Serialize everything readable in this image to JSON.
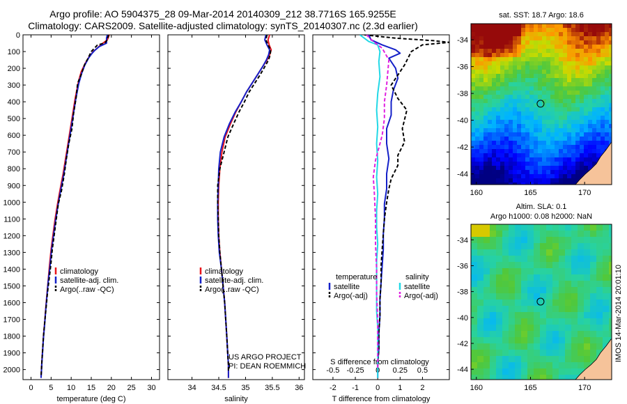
{
  "header": {
    "line1": "Argo profile: AO 5904375_28 09-Mar-2014 20140309_212 38.7716S 165.9255E",
    "line2": "Climatology: CARS2009. Satellite-adjusted climatology: synTS_20140307.nc (2.3d earlier)"
  },
  "colors": {
    "climatology": "#e8141a",
    "satellite": "#1420c8",
    "argo": "#000000",
    "salinity_satellite": "#22d8e6",
    "salinity_argo": "#e020e0"
  },
  "credits": {
    "line1": "US ARGO PROJECT",
    "line2": "PI: DEAN ROEMMICH"
  },
  "stamp": "IMOS 14-Mar-2014 20:01:10",
  "chart_data": [
    {
      "type": "line",
      "xlabel": "temperature (deg C)",
      "ylabel": "",
      "xlim": [
        -2,
        32
      ],
      "ylim": [
        2060,
        0
      ],
      "xticks": [
        0,
        5,
        10,
        15,
        20,
        25,
        30
      ],
      "xtick_labels": [
        "0",
        "5",
        "10",
        "15",
        "20",
        "25",
        "30"
      ],
      "yticks": [
        0,
        100,
        200,
        300,
        400,
        500,
        600,
        700,
        800,
        900,
        1000,
        1100,
        1200,
        1300,
        1400,
        1500,
        1600,
        1700,
        1800,
        1900,
        2000
      ],
      "ytick_labels": [
        "0",
        "100",
        "200",
        "300",
        "400",
        "500",
        "600",
        "700",
        "800",
        "900",
        "1000",
        "1100",
        "1200",
        "1300",
        "1400",
        "1500",
        "1600",
        "1700",
        "1800",
        "1900",
        "2000"
      ],
      "grid": false,
      "legend": {
        "position": "bottom-right",
        "items": [
          "climatology",
          "satellite-adj. clim.",
          "Argo(..raw -QC)"
        ]
      },
      "series": [
        {
          "name": "climatology",
          "style": "solid",
          "color_key": "climatology",
          "x": [
            19.5,
            19.0,
            18.2,
            17.3,
            16.5,
            15.5,
            14.5,
            13.5,
            12.5,
            11.8,
            11.0,
            10.4,
            9.8,
            9.2,
            8.6,
            8.0,
            7.2,
            6.6,
            6.0,
            5.5,
            5.0,
            4.6,
            4.3,
            4.0,
            3.7,
            3.4,
            3.1,
            2.9,
            2.7,
            2.6,
            2.5
          ],
          "y": [
            0,
            30,
            45,
            60,
            80,
            100,
            130,
            170,
            220,
            280,
            380,
            470,
            560,
            650,
            740,
            830,
            930,
            1010,
            1100,
            1190,
            1280,
            1380,
            1460,
            1540,
            1620,
            1720,
            1800,
            1880,
            1950,
            2000,
            2050
          ]
        },
        {
          "name": "satellite-adj. clim.",
          "style": "solid",
          "color_key": "satellite",
          "x": [
            19.0,
            18.8,
            18.8,
            17.0,
            16.0,
            15.2,
            14.3,
            13.4,
            12.6,
            11.9,
            11.1,
            10.5,
            9.9,
            9.3,
            8.7,
            8.1,
            7.3,
            6.7,
            6.1,
            5.6,
            5.1,
            4.7,
            4.3,
            4.0,
            3.7,
            3.4,
            3.1,
            2.9,
            2.7,
            2.6,
            2.5
          ],
          "y": [
            0,
            20,
            50,
            70,
            90,
            110,
            140,
            180,
            230,
            290,
            390,
            480,
            570,
            660,
            750,
            840,
            940,
            1020,
            1110,
            1200,
            1290,
            1390,
            1470,
            1550,
            1630,
            1730,
            1810,
            1890,
            1960,
            2010,
            2050
          ]
        },
        {
          "name": "Argo(..raw -QC)",
          "style": "dashed",
          "color_key": "argo",
          "x": [
            19.3,
            19.0,
            18.4,
            16.5,
            15.8,
            15.0,
            14.2,
            13.3,
            12.6,
            11.6,
            11.2,
            10.6,
            10.2,
            9.4,
            8.8,
            8.3,
            7.6,
            6.8,
            6.3,
            5.8,
            5.3,
            4.9,
            4.5,
            4.1,
            3.8,
            3.4,
            3.1,
            2.9,
            2.7,
            2.6,
            2.5
          ],
          "y": [
            0,
            30,
            48,
            62,
            80,
            100,
            140,
            180,
            230,
            290,
            380,
            470,
            560,
            650,
            740,
            830,
            930,
            1010,
            1100,
            1190,
            1280,
            1380,
            1460,
            1540,
            1620,
            1720,
            1800,
            1880,
            1950,
            2000,
            2040
          ]
        }
      ]
    },
    {
      "type": "line",
      "xlabel": "salinity",
      "ylabel": "",
      "xlim": [
        33.55,
        36.1
      ],
      "ylim": [
        2060,
        0
      ],
      "xticks": [
        34,
        34.5,
        35,
        35.5,
        36
      ],
      "xtick_labels": [
        "34",
        "34.5",
        "35",
        "35.5",
        "36"
      ],
      "grid": false,
      "legend": {
        "position": "bottom-right",
        "items": [
          "climatology",
          "satellite-adj. clim.",
          "Argo(..raw -QC)"
        ]
      },
      "series": [
        {
          "name": "climatology",
          "style": "solid",
          "color_key": "climatology",
          "x": [
            35.45,
            35.42,
            35.44,
            35.48,
            35.45,
            35.4,
            35.32,
            35.22,
            35.12,
            35.02,
            34.92,
            34.82,
            34.72,
            34.62,
            34.56,
            34.52,
            34.5,
            34.49,
            34.49,
            34.5,
            34.52,
            34.55,
            34.58,
            34.61,
            34.63,
            34.65,
            34.66,
            34.67,
            34.68,
            34.68,
            34.68
          ],
          "y": [
            0,
            30,
            60,
            90,
            120,
            150,
            190,
            240,
            290,
            340,
            400,
            460,
            530,
            610,
            700,
            800,
            900,
            1000,
            1100,
            1200,
            1300,
            1400,
            1500,
            1600,
            1700,
            1800,
            1860,
            1920,
            1970,
            2010,
            2050
          ]
        },
        {
          "name": "satellite-adj. clim.",
          "style": "solid",
          "color_key": "satellite",
          "x": [
            35.38,
            35.36,
            35.4,
            35.45,
            35.43,
            35.39,
            35.32,
            35.22,
            35.12,
            35.02,
            34.92,
            34.81,
            34.7,
            34.6,
            34.53,
            34.5,
            34.49,
            34.48,
            34.48,
            34.49,
            34.51,
            34.55,
            34.58,
            34.61,
            34.63,
            34.65,
            34.66,
            34.67,
            34.68,
            34.68,
            34.68
          ],
          "y": [
            0,
            30,
            60,
            90,
            120,
            150,
            190,
            240,
            290,
            340,
            400,
            460,
            530,
            610,
            700,
            800,
            900,
            1000,
            1100,
            1200,
            1300,
            1400,
            1500,
            1600,
            1700,
            1800,
            1860,
            1920,
            1970,
            2010,
            2050
          ]
        },
        {
          "name": "Argo(..raw -QC)",
          "style": "dashed",
          "color_key": "argo",
          "x": [
            35.4,
            35.38,
            35.42,
            35.47,
            35.46,
            35.43,
            35.36,
            35.27,
            35.17,
            35.07,
            34.98,
            34.88,
            34.78,
            34.67,
            34.6,
            34.52,
            34.48,
            34.48,
            34.49,
            34.5,
            34.52,
            34.55,
            34.58,
            34.61,
            34.63,
            34.65,
            34.66,
            34.67,
            34.68,
            34.68
          ],
          "y": [
            0,
            30,
            60,
            90,
            120,
            150,
            190,
            240,
            290,
            340,
            400,
            460,
            530,
            610,
            700,
            800,
            900,
            1000,
            1100,
            1200,
            1300,
            1400,
            1500,
            1600,
            1700,
            1800,
            1860,
            1920,
            1970,
            2010
          ]
        }
      ]
    },
    {
      "type": "line",
      "xlabel": "T difference from climatology",
      "xlabel_top": "S difference from climatology",
      "ylabel": "",
      "xlim": [
        -2.9,
        3.2
      ],
      "ylim": [
        2060,
        0
      ],
      "xticks": [
        -2,
        -1,
        0,
        1,
        2
      ],
      "xtick_labels": [
        "-2",
        "-1",
        "0",
        "1",
        "2"
      ],
      "sticks": [
        -2,
        -1,
        0,
        1,
        2
      ],
      "stick_labels": [
        "-0.5",
        "-0.25",
        "0",
        "0.25",
        "0.5"
      ],
      "grid": false,
      "legend": {
        "position": "bottom",
        "temperature_header": "temperature",
        "salinity_header": "salinity",
        "items": [
          "satellite",
          "Argo(-adj)",
          "satellite",
          "Argo(-adj)"
        ]
      },
      "series": [
        {
          "name": "satellite",
          "group": "temperature",
          "style": "solid",
          "color_key": "satellite",
          "x": [
            -0.4,
            -0.3,
            0.2,
            0.8,
            1.0,
            0.5,
            0.8,
            0.9,
            0.7,
            0.6,
            0.6,
            0.4,
            0.4,
            0.5,
            0.4,
            0.4,
            0.3,
            0.3,
            0.25,
            0.25,
            0.2,
            0.15,
            0.1,
            0.1,
            0.05,
            0.05,
            0.0,
            0.0,
            0.0
          ],
          "y": [
            0,
            30,
            60,
            90,
            110,
            140,
            200,
            260,
            330,
            400,
            480,
            560,
            650,
            740,
            830,
            920,
            1010,
            1100,
            1190,
            1280,
            1380,
            1480,
            1580,
            1680,
            1780,
            1880,
            1960,
            2020,
            2050
          ]
        },
        {
          "name": "Argo(-adj)",
          "group": "temperature",
          "style": "dashed",
          "color_key": "argo",
          "x": [
            -0.6,
            0.8,
            2.5,
            3.2,
            2.0,
            1.5,
            1.2,
            0.6,
            0.9,
            1.3,
            1.1,
            1.2,
            0.9,
            0.9,
            0.6,
            0.5,
            0.4,
            0.3,
            0.25,
            0.2,
            0.15,
            0.15,
            0.1,
            0.1,
            0.05,
            0.05,
            0.0,
            0.0
          ],
          "y": [
            0,
            20,
            35,
            45,
            60,
            100,
            180,
            300,
            380,
            450,
            560,
            640,
            720,
            780,
            860,
            920,
            1000,
            1100,
            1190,
            1280,
            1380,
            1480,
            1580,
            1680,
            1780,
            1880,
            1960,
            2020
          ]
        },
        {
          "name": "satellite",
          "group": "salinity",
          "style": "solid",
          "color_key": "salinity_satellite",
          "x": [
            -0.8,
            -0.4,
            0.0,
            0.1,
            0.05,
            0.1,
            0.0,
            -0.05,
            0.0,
            -0.05,
            0.0,
            -0.05,
            0.0,
            -0.05,
            -0.05,
            0.0,
            -0.05,
            -0.05,
            -0.05,
            -0.05,
            0.0,
            0.0,
            0.0,
            0.0
          ],
          "y": [
            0,
            40,
            60,
            100,
            160,
            250,
            350,
            450,
            550,
            650,
            750,
            850,
            950,
            1050,
            1150,
            1250,
            1350,
            1450,
            1550,
            1650,
            1750,
            1850,
            1950,
            2050
          ]
        },
        {
          "name": "Argo(-adj)",
          "group": "salinity",
          "style": "dashed",
          "color_key": "salinity_argo",
          "x": [
            -0.5,
            -0.2,
            0.2,
            0.5,
            0.4,
            0.3,
            0.3,
            0.2,
            -0.1,
            -0.2,
            -0.15,
            -0.1,
            -0.1,
            -0.05,
            -0.05,
            0.0,
            0.0,
            0.0
          ],
          "y": [
            0,
            40,
            80,
            150,
            300,
            400,
            500,
            600,
            750,
            850,
            950,
            1100,
            1250,
            1400,
            1550,
            1700,
            1850,
            2000
          ]
        }
      ]
    }
  ],
  "maps": [
    {
      "title": "sat. SST: 18.7 Argo: 18.6",
      "xlim": [
        159.5,
        172.5
      ],
      "ylim": [
        -44.8,
        -32.8
      ],
      "xticks": [
        160,
        165,
        170
      ],
      "xtick_labels": [
        "160",
        "165",
        "170"
      ],
      "yticks": [
        -34,
        -36,
        -38,
        -40,
        -42,
        -44
      ],
      "ytick_labels": [
        "-34",
        "-36",
        "-38",
        "-40",
        "-42",
        "-44"
      ],
      "marker": {
        "lon": 165.93,
        "lat": -38.77
      }
    },
    {
      "title": "Altim. SLA: 0.1",
      "title2": "Argo h1000: 0.08 h2000: NaN",
      "xlim": [
        159.5,
        172.5
      ],
      "ylim": [
        -44.8,
        -32.8
      ],
      "xticks": [
        160,
        165,
        170
      ],
      "xtick_labels": [
        "160",
        "165",
        "170"
      ],
      "yticks": [
        -34,
        -36,
        -38,
        -40,
        -42,
        -44
      ],
      "ytick_labels": [
        "-34",
        "-36",
        "-38",
        "-40",
        "-42",
        "-44"
      ],
      "marker": {
        "lon": 165.93,
        "lat": -38.77
      }
    }
  ]
}
